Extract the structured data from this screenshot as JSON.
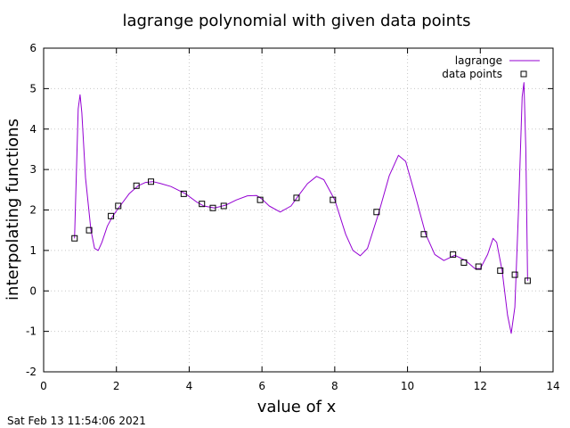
{
  "chart_data": {
    "type": "line",
    "title": "lagrange polynomial with given data points",
    "xlabel": "value of x",
    "ylabel": "interpolating functions",
    "xlim": [
      0,
      14
    ],
    "ylim": [
      -2,
      6
    ],
    "xticks": [
      0,
      2,
      4,
      6,
      8,
      10,
      12,
      14
    ],
    "yticks": [
      -2,
      -1,
      0,
      1,
      2,
      3,
      4,
      5,
      6
    ],
    "grid": true,
    "legend_position": "top-right",
    "series": [
      {
        "name": "lagrange",
        "kind": "line",
        "color": "#9400d3",
        "points": [
          [
            0.85,
            1.3
          ],
          [
            0.95,
            4.5
          ],
          [
            1.0,
            4.85
          ],
          [
            1.05,
            4.4
          ],
          [
            1.15,
            2.8
          ],
          [
            1.3,
            1.5
          ],
          [
            1.4,
            1.05
          ],
          [
            1.5,
            1.0
          ],
          [
            1.6,
            1.2
          ],
          [
            1.75,
            1.6
          ],
          [
            1.9,
            1.85
          ],
          [
            2.1,
            2.1
          ],
          [
            2.35,
            2.4
          ],
          [
            2.6,
            2.6
          ],
          [
            2.8,
            2.68
          ],
          [
            3.0,
            2.7
          ],
          [
            3.2,
            2.66
          ],
          [
            3.5,
            2.58
          ],
          [
            3.9,
            2.4
          ],
          [
            4.2,
            2.2
          ],
          [
            4.4,
            2.1
          ],
          [
            4.7,
            2.05
          ],
          [
            5.0,
            2.12
          ],
          [
            5.3,
            2.25
          ],
          [
            5.6,
            2.35
          ],
          [
            5.85,
            2.36
          ],
          [
            6.0,
            2.27
          ],
          [
            6.2,
            2.1
          ],
          [
            6.5,
            1.95
          ],
          [
            6.8,
            2.1
          ],
          [
            7.0,
            2.35
          ],
          [
            7.25,
            2.65
          ],
          [
            7.5,
            2.83
          ],
          [
            7.7,
            2.75
          ],
          [
            8.0,
            2.25
          ],
          [
            8.3,
            1.4
          ],
          [
            8.5,
            1.0
          ],
          [
            8.7,
            0.87
          ],
          [
            8.9,
            1.05
          ],
          [
            9.2,
            1.9
          ],
          [
            9.5,
            2.85
          ],
          [
            9.75,
            3.35
          ],
          [
            9.95,
            3.2
          ],
          [
            10.2,
            2.4
          ],
          [
            10.5,
            1.4
          ],
          [
            10.75,
            0.9
          ],
          [
            11.0,
            0.75
          ],
          [
            11.3,
            0.88
          ],
          [
            11.6,
            0.75
          ],
          [
            11.85,
            0.55
          ],
          [
            12.0,
            0.55
          ],
          [
            12.2,
            0.9
          ],
          [
            12.35,
            1.3
          ],
          [
            12.45,
            1.2
          ],
          [
            12.6,
            0.5
          ],
          [
            12.75,
            -0.6
          ],
          [
            12.85,
            -1.05
          ],
          [
            12.95,
            -0.4
          ],
          [
            13.05,
            2.0
          ],
          [
            13.15,
            4.8
          ],
          [
            13.2,
            5.15
          ],
          [
            13.25,
            3.5
          ],
          [
            13.3,
            0.25
          ]
        ]
      },
      {
        "name": "data points",
        "kind": "points",
        "color": "#000000",
        "points": [
          [
            0.85,
            1.3
          ],
          [
            1.25,
            1.5
          ],
          [
            1.85,
            1.85
          ],
          [
            2.05,
            2.1
          ],
          [
            2.55,
            2.6
          ],
          [
            2.95,
            2.7
          ],
          [
            3.85,
            2.4
          ],
          [
            4.35,
            2.15
          ],
          [
            4.65,
            2.05
          ],
          [
            4.95,
            2.1
          ],
          [
            5.95,
            2.25
          ],
          [
            6.95,
            2.3
          ],
          [
            7.95,
            2.25
          ],
          [
            9.15,
            1.95
          ],
          [
            10.45,
            1.4
          ],
          [
            11.25,
            0.9
          ],
          [
            11.55,
            0.7
          ],
          [
            11.95,
            0.6
          ],
          [
            12.55,
            0.5
          ],
          [
            12.95,
            0.4
          ],
          [
            13.3,
            0.25
          ]
        ]
      }
    ]
  },
  "timestamp": "Sat Feb 13 11:54:06 2021"
}
